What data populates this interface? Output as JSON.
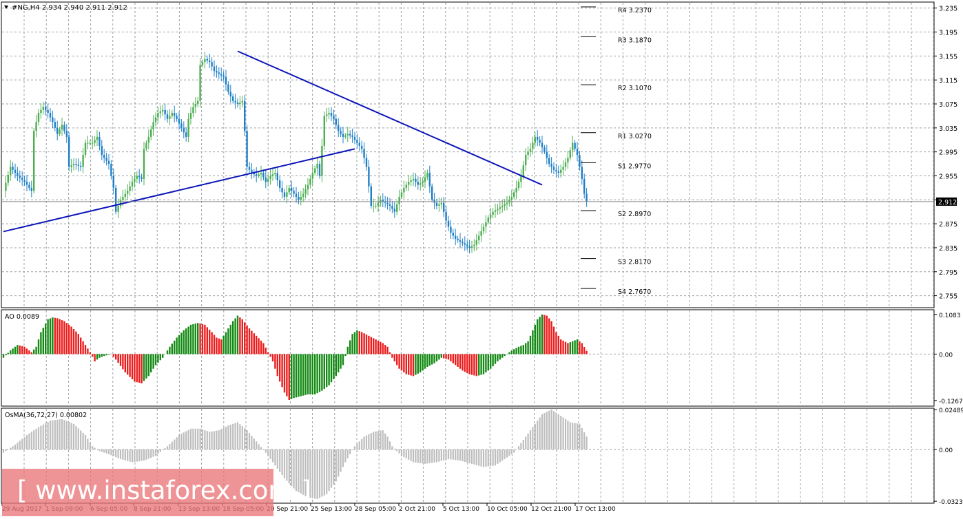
{
  "symbol_header": "#NG,H4  2.934 2.940 2.911 2.912",
  "current_price_label": "2.912",
  "colors": {
    "grid": "#9aa0a6",
    "bull": "#4caf50",
    "bear": "#1e7fc9",
    "trendline": "#0d16b8",
    "ao_up": "#138a13",
    "ao_down": "#ec1c1c",
    "osma": "#bdbdbd",
    "border": "#000000",
    "watermark": "#ec7678"
  },
  "watermark": {
    "text": "www.instaforex.com"
  },
  "chart_data": [
    {
      "type": "candlestick",
      "title": "#NG,H4",
      "ohlc_last": {
        "open": 2.934,
        "high": 2.94,
        "low": 2.911,
        "close": 2.912
      },
      "ylim": [
        2.735,
        3.245
      ],
      "y_ticks": [
        "3.235",
        "3.195",
        "3.155",
        "3.115",
        "3.075",
        "3.035",
        "2.995",
        "2.955",
        "2.915",
        "2.875",
        "2.835",
        "2.795",
        "2.755"
      ],
      "x_ticks": [
        "29 Aug 2017",
        "1 Sep 09:00",
        "6 Sep 05:00",
        "8 Sep 21:00",
        "13 Sep 13:00",
        "18 Sep 05:00",
        "20 Sep 21:00",
        "25 Sep 13:00",
        "28 Sep 05:00",
        "2 Oct 21:00",
        "5 Oct 13:00",
        "10 Oct 05:00",
        "12 Oct 21:00",
        "17 Oct 13:00"
      ],
      "close_path": [
        [
          0,
          2.93
        ],
        [
          3,
          2.97
        ],
        [
          6,
          2.955
        ],
        [
          9,
          2.945
        ],
        [
          12,
          2.93
        ],
        [
          13,
          3.03
        ],
        [
          15,
          3.06
        ],
        [
          17,
          3.07
        ],
        [
          19,
          3.06
        ],
        [
          21,
          3.045
        ],
        [
          23,
          3.025
        ],
        [
          25,
          3.04
        ],
        [
          27,
          3.02
        ],
        [
          28,
          2.97
        ],
        [
          30,
          2.975
        ],
        [
          33,
          2.97
        ],
        [
          35,
          3.01
        ],
        [
          38,
          3.01
        ],
        [
          40,
          3.02
        ],
        [
          42,
          2.99
        ],
        [
          45,
          2.975
        ],
        [
          47,
          2.935
        ],
        [
          48,
          2.895
        ],
        [
          50,
          2.915
        ],
        [
          53,
          2.93
        ],
        [
          55,
          2.945
        ],
        [
          57,
          2.955
        ],
        [
          59,
          2.95
        ],
        [
          60,
          3.0
        ],
        [
          62,
          3.02
        ],
        [
          64,
          3.045
        ],
        [
          66,
          3.06
        ],
        [
          68,
          3.065
        ],
        [
          70,
          3.05
        ],
        [
          72,
          3.06
        ],
        [
          74,
          3.05
        ],
        [
          76,
          3.035
        ],
        [
          78,
          3.02
        ],
        [
          79,
          3.05
        ],
        [
          81,
          3.07
        ],
        [
          83,
          3.08
        ],
        [
          84,
          3.14
        ],
        [
          86,
          3.15
        ],
        [
          88,
          3.145
        ],
        [
          90,
          3.13
        ],
        [
          92,
          3.125
        ],
        [
          94,
          3.12
        ],
        [
          96,
          3.095
        ],
        [
          98,
          3.08
        ],
        [
          100,
          3.075
        ],
        [
          102,
          3.08
        ],
        [
          103,
          3.03
        ],
        [
          104,
          2.97
        ],
        [
          106,
          2.96
        ],
        [
          108,
          2.955
        ],
        [
          110,
          2.96
        ],
        [
          112,
          2.945
        ],
        [
          114,
          2.955
        ],
        [
          116,
          2.96
        ],
        [
          118,
          2.935
        ],
        [
          120,
          2.92
        ],
        [
          122,
          2.935
        ],
        [
          124,
          2.925
        ],
        [
          126,
          2.915
        ],
        [
          128,
          2.925
        ],
        [
          130,
          2.94
        ],
        [
          132,
          2.96
        ],
        [
          134,
          2.975
        ],
        [
          135,
          2.955
        ],
        [
          137,
          3.055
        ],
        [
          139,
          3.06
        ],
        [
          141,
          3.05
        ],
        [
          143,
          3.03
        ],
        [
          145,
          3.02
        ],
        [
          147,
          3.025
        ],
        [
          149,
          3.02
        ],
        [
          151,
          3.01
        ],
        [
          153,
          3.0
        ],
        [
          155,
          2.97
        ],
        [
          157,
          2.905
        ],
        [
          159,
          2.905
        ],
        [
          161,
          2.915
        ],
        [
          163,
          2.91
        ],
        [
          165,
          2.905
        ],
        [
          167,
          2.895
        ],
        [
          169,
          2.92
        ],
        [
          171,
          2.935
        ],
        [
          173,
          2.945
        ],
        [
          175,
          2.95
        ],
        [
          177,
          2.94
        ],
        [
          179,
          2.945
        ],
        [
          181,
          2.96
        ],
        [
          183,
          2.915
        ],
        [
          185,
          2.905
        ],
        [
          187,
          2.91
        ],
        [
          189,
          2.88
        ],
        [
          191,
          2.86
        ],
        [
          193,
          2.85
        ],
        [
          195,
          2.845
        ],
        [
          197,
          2.84
        ],
        [
          199,
          2.835
        ],
        [
          201,
          2.84
        ],
        [
          203,
          2.855
        ],
        [
          205,
          2.87
        ],
        [
          207,
          2.885
        ],
        [
          209,
          2.895
        ],
        [
          211,
          2.9
        ],
        [
          213,
          2.905
        ],
        [
          215,
          2.91
        ],
        [
          217,
          2.92
        ],
        [
          219,
          2.935
        ],
        [
          221,
          2.955
        ],
        [
          223,
          2.99
        ],
        [
          225,
          3.0
        ],
        [
          227,
          3.02
        ],
        [
          229,
          3.01
        ],
        [
          231,
          2.995
        ],
        [
          233,
          2.975
        ],
        [
          235,
          2.965
        ],
        [
          237,
          2.96
        ],
        [
          239,
          2.97
        ],
        [
          241,
          2.985
        ],
        [
          243,
          3.01
        ],
        [
          245,
          2.99
        ],
        [
          247,
          2.95
        ],
        [
          248,
          2.925
        ],
        [
          249,
          2.912
        ]
      ],
      "trendlines": [
        {
          "name": "rising support",
          "from": [
            0,
            2.862
          ],
          "to": [
            150,
            3.0
          ]
        },
        {
          "name": "falling resistance",
          "from": [
            100,
            3.163
          ],
          "to": [
            230,
            2.94
          ]
        }
      ],
      "levels": [
        {
          "label": "R4 3.2370",
          "value": 3.237
        },
        {
          "label": "R3 3.1870",
          "value": 3.187
        },
        {
          "label": "R2 3.1070",
          "value": 3.107
        },
        {
          "label": "R1 3.0270",
          "value": 3.027
        },
        {
          "label": "S1 2.9770",
          "value": 2.977
        },
        {
          "label": "S2 2.8970",
          "value": 2.897
        },
        {
          "label": "S3 2.8170",
          "value": 2.817
        },
        {
          "label": "S4 2.7670",
          "value": 2.767
        }
      ]
    },
    {
      "type": "bar",
      "title": "AO 0.0089",
      "ylim": [
        -0.142,
        0.121
      ],
      "y_ticks": [
        "0.1083",
        "0.00",
        "-0.1267"
      ],
      "keypoints": [
        [
          0,
          -0.01
        ],
        [
          3,
          0.01
        ],
        [
          6,
          0.025
        ],
        [
          9,
          0.02
        ],
        [
          12,
          0.005
        ],
        [
          14,
          0.02
        ],
        [
          16,
          0.06
        ],
        [
          19,
          0.095
        ],
        [
          21,
          0.1
        ],
        [
          23,
          0.098
        ],
        [
          26,
          0.09
        ],
        [
          29,
          0.075
        ],
        [
          32,
          0.055
        ],
        [
          35,
          0.025
        ],
        [
          37,
          0.005
        ],
        [
          39,
          -0.02
        ],
        [
          41,
          -0.01
        ],
        [
          43,
          -0.005
        ],
        [
          46,
          0.0
        ],
        [
          48,
          -0.015
        ],
        [
          52,
          -0.05
        ],
        [
          56,
          -0.075
        ],
        [
          59,
          -0.08
        ],
        [
          62,
          -0.06
        ],
        [
          65,
          -0.03
        ],
        [
          68,
          -0.01
        ],
        [
          71,
          0.02
        ],
        [
          74,
          0.045
        ],
        [
          77,
          0.065
        ],
        [
          80,
          0.08
        ],
        [
          83,
          0.085
        ],
        [
          86,
          0.08
        ],
        [
          89,
          0.06
        ],
        [
          91,
          0.045
        ],
        [
          93,
          0.04
        ],
        [
          95,
          0.06
        ],
        [
          98,
          0.09
        ],
        [
          100,
          0.105
        ],
        [
          102,
          0.095
        ],
        [
          105,
          0.07
        ],
        [
          108,
          0.05
        ],
        [
          111,
          0.03
        ],
        [
          113,
          0.005
        ],
        [
          115,
          -0.02
        ],
        [
          117,
          -0.06
        ],
        [
          120,
          -0.105
        ],
        [
          122,
          -0.125
        ],
        [
          124,
          -0.12
        ],
        [
          127,
          -0.115
        ],
        [
          130,
          -0.11
        ],
        [
          133,
          -0.11
        ],
        [
          136,
          -0.1
        ],
        [
          139,
          -0.085
        ],
        [
          142,
          -0.06
        ],
        [
          145,
          -0.03
        ],
        [
          147,
          0.02
        ],
        [
          149,
          0.055
        ],
        [
          151,
          0.065
        ],
        [
          153,
          0.06
        ],
        [
          156,
          0.05
        ],
        [
          159,
          0.04
        ],
        [
          162,
          0.03
        ],
        [
          164,
          0.02
        ],
        [
          166,
          -0.01
        ],
        [
          169,
          -0.04
        ],
        [
          172,
          -0.055
        ],
        [
          175,
          -0.06
        ],
        [
          178,
          -0.05
        ],
        [
          181,
          -0.035
        ],
        [
          184,
          -0.025
        ],
        [
          187,
          -0.01
        ],
        [
          190,
          -0.015
        ],
        [
          193,
          -0.03
        ],
        [
          196,
          -0.045
        ],
        [
          199,
          -0.055
        ],
        [
          202,
          -0.06
        ],
        [
          205,
          -0.055
        ],
        [
          208,
          -0.04
        ],
        [
          211,
          -0.02
        ],
        [
          214,
          -0.005
        ],
        [
          217,
          0.01
        ],
        [
          220,
          0.02
        ],
        [
          222,
          0.025
        ],
        [
          224,
          0.035
        ],
        [
          226,
          0.065
        ],
        [
          228,
          0.095
        ],
        [
          230,
          0.108
        ],
        [
          232,
          0.105
        ],
        [
          234,
          0.09
        ],
        [
          236,
          0.06
        ],
        [
          238,
          0.04
        ],
        [
          241,
          0.03
        ],
        [
          243,
          0.035
        ],
        [
          245,
          0.04
        ],
        [
          247,
          0.03
        ],
        [
          249,
          0.0089
        ]
      ]
    },
    {
      "type": "bar",
      "title": "OsMA(36,72,27) 0.00802",
      "ylim": [
        -0.0336,
        0.0258
      ],
      "y_ticks": [
        "0.02489",
        "0.00",
        "-0.03238"
      ],
      "keypoints": [
        [
          0,
          -0.002
        ],
        [
          5,
          0.003
        ],
        [
          10,
          0.009
        ],
        [
          15,
          0.014
        ],
        [
          20,
          0.018
        ],
        [
          25,
          0.019
        ],
        [
          30,
          0.016
        ],
        [
          35,
          0.009
        ],
        [
          38,
          0.002
        ],
        [
          41,
          -0.001
        ],
        [
          45,
          -0.003
        ],
        [
          50,
          -0.006
        ],
        [
          55,
          -0.008
        ],
        [
          60,
          -0.007
        ],
        [
          65,
          -0.004
        ],
        [
          70,
          0.002
        ],
        [
          75,
          0.009
        ],
        [
          80,
          0.013
        ],
        [
          84,
          0.013
        ],
        [
          88,
          0.011
        ],
        [
          92,
          0.012
        ],
        [
          96,
          0.015
        ],
        [
          100,
          0.017
        ],
        [
          104,
          0.012
        ],
        [
          108,
          0.005
        ],
        [
          112,
          -0.002
        ],
        [
          116,
          -0.01
        ],
        [
          120,
          -0.018
        ],
        [
          125,
          -0.026
        ],
        [
          130,
          -0.03
        ],
        [
          134,
          -0.031
        ],
        [
          138,
          -0.028
        ],
        [
          142,
          -0.02
        ],
        [
          146,
          -0.008
        ],
        [
          150,
          0.002
        ],
        [
          154,
          0.008
        ],
        [
          158,
          0.011
        ],
        [
          162,
          0.012
        ],
        [
          164,
          0.008
        ],
        [
          166,
          0.002
        ],
        [
          170,
          -0.004
        ],
        [
          175,
          -0.008
        ],
        [
          180,
          -0.009
        ],
        [
          185,
          -0.008
        ],
        [
          190,
          -0.006
        ],
        [
          195,
          -0.007
        ],
        [
          200,
          -0.009
        ],
        [
          205,
          -0.011
        ],
        [
          210,
          -0.01
        ],
        [
          214,
          -0.006
        ],
        [
          218,
          -0.002
        ],
        [
          222,
          0.006
        ],
        [
          226,
          0.014
        ],
        [
          230,
          0.022
        ],
        [
          234,
          0.025
        ],
        [
          238,
          0.021
        ],
        [
          242,
          0.017
        ],
        [
          246,
          0.016
        ],
        [
          249,
          0.00802
        ]
      ]
    }
  ]
}
